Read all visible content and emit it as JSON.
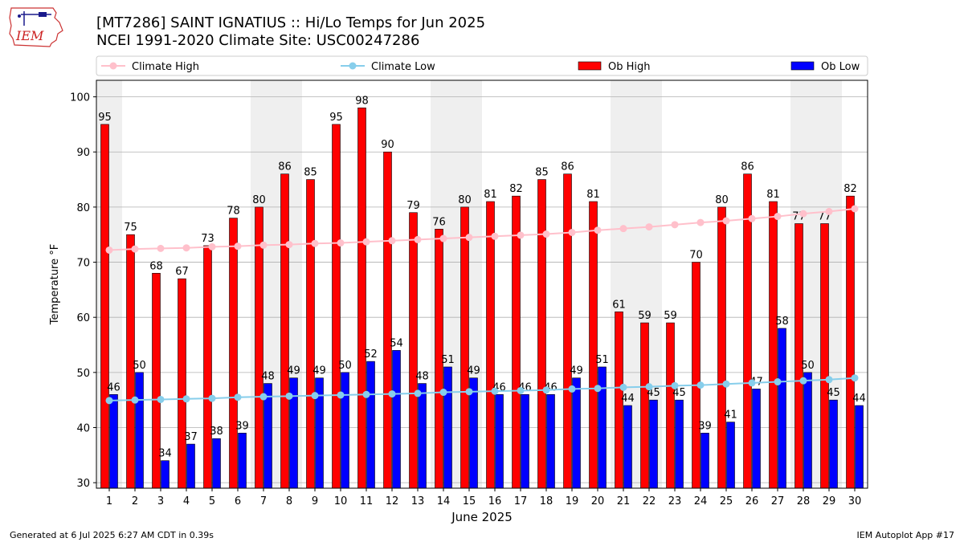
{
  "header": {
    "title_line1": "[MT7286] SAINT IGNATIUS :: Hi/Lo Temps for Jun 2025",
    "title_line2": "NCEI 1991-2020 Climate Site: USC00247286"
  },
  "logo": {
    "text": "IEM"
  },
  "footer": {
    "generated": "Generated at 6 Jul 2025 6:27 AM CDT in 0.39s",
    "app": "IEM Autoplot App #17"
  },
  "colors": {
    "ob_high": "#ff0000",
    "ob_low": "#0000ff",
    "climate_high": "#ffc0cb",
    "climate_low": "#87ceeb",
    "weekend_band": "#efefef",
    "grid": "#b0b0b0"
  },
  "chart_data": {
    "type": "bar",
    "xlabel": "June 2025",
    "ylabel": "Temperature °F",
    "ylim": [
      29,
      103
    ],
    "yticks": [
      30,
      40,
      50,
      60,
      70,
      80,
      90,
      100
    ],
    "grid": "horizontal",
    "legend_position": "top",
    "categories": [
      "1",
      "2",
      "3",
      "4",
      "5",
      "6",
      "7",
      "8",
      "9",
      "10",
      "11",
      "12",
      "13",
      "14",
      "15",
      "16",
      "17",
      "18",
      "19",
      "20",
      "21",
      "22",
      "23",
      "24",
      "25",
      "26",
      "27",
      "28",
      "29",
      "30"
    ],
    "shaded_days": [
      "1",
      "7",
      "8",
      "14",
      "15",
      "21",
      "22",
      "28",
      "29"
    ],
    "series": [
      {
        "name": "Climate High",
        "kind": "line",
        "values": [
          72.2,
          72.4,
          72.5,
          72.6,
          72.8,
          72.9,
          73.1,
          73.2,
          73.4,
          73.5,
          73.7,
          73.9,
          74.1,
          74.3,
          74.5,
          74.7,
          74.9,
          75.1,
          75.4,
          75.8,
          76.1,
          76.4,
          76.8,
          77.2,
          77.5,
          77.9,
          78.3,
          78.8,
          79.2,
          79.7
        ]
      },
      {
        "name": "Climate Low",
        "kind": "line",
        "values": [
          44.9,
          45.0,
          45.1,
          45.2,
          45.3,
          45.5,
          45.6,
          45.7,
          45.8,
          45.9,
          46.0,
          46.1,
          46.2,
          46.4,
          46.5,
          46.6,
          46.7,
          46.8,
          47.0,
          47.1,
          47.3,
          47.4,
          47.6,
          47.7,
          47.9,
          48.1,
          48.3,
          48.5,
          48.7,
          49.0
        ]
      },
      {
        "name": "Ob High",
        "kind": "bar",
        "values": [
          95,
          75,
          68,
          67,
          73,
          78,
          80,
          86,
          85,
          95,
          98,
          90,
          79,
          76,
          80,
          81,
          82,
          85,
          86,
          81,
          61,
          59,
          59,
          70,
          80,
          86,
          81,
          77,
          77,
          82
        ]
      },
      {
        "name": "Ob Low",
        "kind": "bar",
        "values": [
          46,
          50,
          34,
          37,
          38,
          39,
          48,
          49,
          49,
          50,
          52,
          54,
          48,
          51,
          49,
          46,
          46,
          46,
          49,
          51,
          44,
          45,
          45,
          39,
          41,
          47,
          58,
          50,
          45,
          44
        ]
      }
    ]
  }
}
